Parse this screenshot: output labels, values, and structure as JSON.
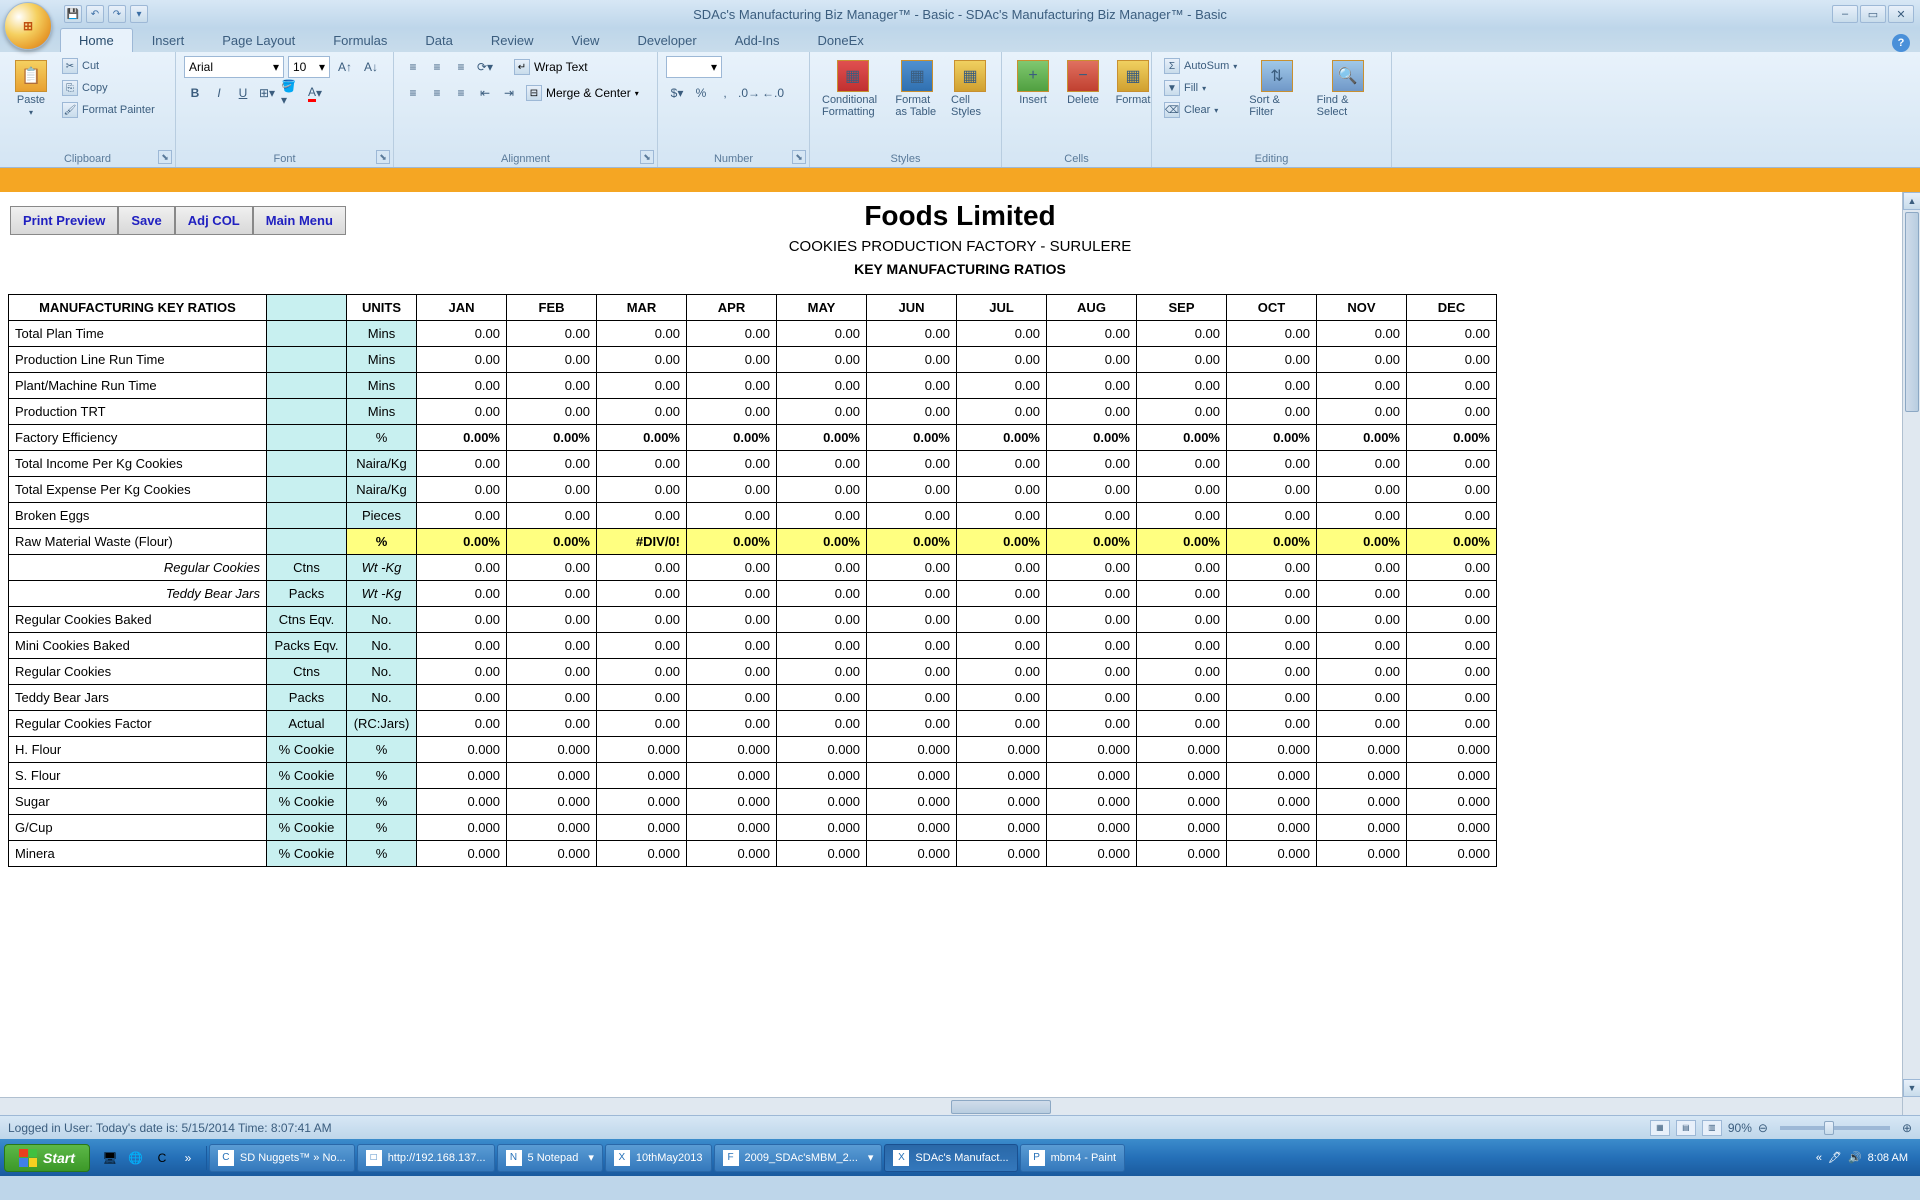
{
  "window": {
    "title": "SDAc's Manufacturing Biz Manager™ - Basic - SDAc's Manufacturing Biz Manager™ - Basic"
  },
  "ribbon": {
    "tabs": [
      "Home",
      "Insert",
      "Page Layout",
      "Formulas",
      "Data",
      "Review",
      "View",
      "Developer",
      "Add-Ins",
      "DoneEx"
    ],
    "active_tab": "Home",
    "clipboard": {
      "label": "Clipboard",
      "paste": "Paste",
      "cut": "Cut",
      "copy": "Copy",
      "format_painter": "Format Painter"
    },
    "font": {
      "label": "Font",
      "name": "Arial",
      "size": "10"
    },
    "alignment": {
      "label": "Alignment",
      "wrap": "Wrap Text",
      "merge": "Merge & Center"
    },
    "number": {
      "label": "Number"
    },
    "styles": {
      "label": "Styles",
      "conditional": "Conditional Formatting",
      "format_table": "Format as Table",
      "cell_styles": "Cell Styles"
    },
    "cells": {
      "label": "Cells",
      "insert": "Insert",
      "delete": "Delete",
      "format": "Format"
    },
    "editing": {
      "label": "Editing",
      "autosum": "AutoSum",
      "fill": "Fill",
      "clear": "Clear",
      "sort_filter": "Sort & Filter",
      "find_select": "Find & Select"
    }
  },
  "actions": {
    "print_preview": "Print Preview",
    "save": "Save",
    "adj_col": "Adj COL",
    "main_menu": "Main Menu"
  },
  "document": {
    "company": "Foods Limited",
    "factory": "COOKIES PRODUCTION FACTORY - SURULERE",
    "title": "KEY MANUFACTURING RATIOS"
  },
  "table": {
    "header_label": "MANUFACTURING KEY RATIOS",
    "units_label": "UNITS",
    "months": [
      "JAN",
      "FEB",
      "MAR",
      "APR",
      "MAY",
      "JUN",
      "JUL",
      "AUG",
      "SEP",
      "OCT",
      "NOV",
      "DEC"
    ],
    "rows": [
      {
        "label": "Total Plan Time",
        "col2": "",
        "units": "Mins",
        "vals": [
          "0.00",
          "0.00",
          "0.00",
          "0.00",
          "0.00",
          "0.00",
          "0.00",
          "0.00",
          "0.00",
          "0.00",
          "0.00",
          "0.00"
        ],
        "style": "plain"
      },
      {
        "label": "Production Line Run Time",
        "col2": "",
        "units": "Mins",
        "vals": [
          "0.00",
          "0.00",
          "0.00",
          "0.00",
          "0.00",
          "0.00",
          "0.00",
          "0.00",
          "0.00",
          "0.00",
          "0.00",
          "0.00"
        ],
        "style": "plain"
      },
      {
        "label": "Plant/Machine Run Time",
        "col2": "",
        "units": "Mins",
        "vals": [
          "0.00",
          "0.00",
          "0.00",
          "0.00",
          "0.00",
          "0.00",
          "0.00",
          "0.00",
          "0.00",
          "0.00",
          "0.00",
          "0.00"
        ],
        "style": "plain"
      },
      {
        "label": "Production TRT",
        "col2": "",
        "units": "Mins",
        "vals": [
          "0.00",
          "0.00",
          "0.00",
          "0.00",
          "0.00",
          "0.00",
          "0.00",
          "0.00",
          "0.00",
          "0.00",
          "0.00",
          "0.00"
        ],
        "style": "plain"
      },
      {
        "label": "Factory Efficiency",
        "col2": "",
        "units": "%",
        "vals": [
          "0.00%",
          "0.00%",
          "0.00%",
          "0.00%",
          "0.00%",
          "0.00%",
          "0.00%",
          "0.00%",
          "0.00%",
          "0.00%",
          "0.00%",
          "0.00%"
        ],
        "style": "bold"
      },
      {
        "label": "Total Income Per Kg Cookies",
        "col2": "",
        "units": "Naira/Kg",
        "vals": [
          "0.00",
          "0.00",
          "0.00",
          "0.00",
          "0.00",
          "0.00",
          "0.00",
          "0.00",
          "0.00",
          "0.00",
          "0.00",
          "0.00"
        ],
        "style": "plain"
      },
      {
        "label": "Total Expense Per Kg Cookies",
        "col2": "",
        "units": "Naira/Kg",
        "vals": [
          "0.00",
          "0.00",
          "0.00",
          "0.00",
          "0.00",
          "0.00",
          "0.00",
          "0.00",
          "0.00",
          "0.00",
          "0.00",
          "0.00"
        ],
        "style": "plain"
      },
      {
        "label": "Broken Eggs",
        "col2": "",
        "units": "Pieces",
        "vals": [
          "0.00",
          "0.00",
          "0.00",
          "0.00",
          "0.00",
          "0.00",
          "0.00",
          "0.00",
          "0.00",
          "0.00",
          "0.00",
          "0.00"
        ],
        "style": "plain"
      },
      {
        "label": "Raw Material Waste (Flour)",
        "col2": "",
        "units": "%",
        "vals": [
          "0.00%",
          "0.00%",
          "#DIV/0!",
          "0.00%",
          "0.00%",
          "0.00%",
          "0.00%",
          "0.00%",
          "0.00%",
          "0.00%",
          "0.00%",
          "0.00%"
        ],
        "style": "yellow"
      },
      {
        "label": "Regular Cookies",
        "col2": "Ctns",
        "units": "Wt -Kg",
        "vals": [
          "0.00",
          "0.00",
          "0.00",
          "0.00",
          "0.00",
          "0.00",
          "0.00",
          "0.00",
          "0.00",
          "0.00",
          "0.00",
          "0.00"
        ],
        "style": "indent"
      },
      {
        "label": "Teddy Bear Jars",
        "col2": "Packs",
        "units": "Wt -Kg",
        "vals": [
          "0.00",
          "0.00",
          "0.00",
          "0.00",
          "0.00",
          "0.00",
          "0.00",
          "0.00",
          "0.00",
          "0.00",
          "0.00",
          "0.00"
        ],
        "style": "indent"
      },
      {
        "label": "Regular Cookies Baked",
        "col2": "Ctns Eqv.",
        "units": "No.",
        "vals": [
          "0.00",
          "0.00",
          "0.00",
          "0.00",
          "0.00",
          "0.00",
          "0.00",
          "0.00",
          "0.00",
          "0.00",
          "0.00",
          "0.00"
        ],
        "style": "plain"
      },
      {
        "label": "Mini Cookies Baked",
        "col2": "Packs Eqv.",
        "units": "No.",
        "vals": [
          "0.00",
          "0.00",
          "0.00",
          "0.00",
          "0.00",
          "0.00",
          "0.00",
          "0.00",
          "0.00",
          "0.00",
          "0.00",
          "0.00"
        ],
        "style": "plain"
      },
      {
        "label": "Regular Cookies",
        "col2": "Ctns",
        "units": "No.",
        "vals": [
          "0.00",
          "0.00",
          "0.00",
          "0.00",
          "0.00",
          "0.00",
          "0.00",
          "0.00",
          "0.00",
          "0.00",
          "0.00",
          "0.00"
        ],
        "style": "plain"
      },
      {
        "label": "Teddy Bear Jars",
        "col2": "Packs",
        "units": "No.",
        "vals": [
          "0.00",
          "0.00",
          "0.00",
          "0.00",
          "0.00",
          "0.00",
          "0.00",
          "0.00",
          "0.00",
          "0.00",
          "0.00",
          "0.00"
        ],
        "style": "plain"
      },
      {
        "label": "Regular Cookies Factor",
        "col2": "Actual",
        "units": "(RC:Jars)",
        "vals": [
          "0.00",
          "0.00",
          "0.00",
          "0.00",
          "0.00",
          "0.00",
          "0.00",
          "0.00",
          "0.00",
          "0.00",
          "0.00",
          "0.00"
        ],
        "style": "plain"
      },
      {
        "label": "H. Flour",
        "col2": "% Cookie",
        "units": "%",
        "vals": [
          "0.000",
          "0.000",
          "0.000",
          "0.000",
          "0.000",
          "0.000",
          "0.000",
          "0.000",
          "0.000",
          "0.000",
          "0.000",
          "0.000"
        ],
        "style": "plain"
      },
      {
        "label": "S. Flour",
        "col2": "% Cookie",
        "units": "%",
        "vals": [
          "0.000",
          "0.000",
          "0.000",
          "0.000",
          "0.000",
          "0.000",
          "0.000",
          "0.000",
          "0.000",
          "0.000",
          "0.000",
          "0.000"
        ],
        "style": "plain"
      },
      {
        "label": "Sugar",
        "col2": "% Cookie",
        "units": "%",
        "vals": [
          "0.000",
          "0.000",
          "0.000",
          "0.000",
          "0.000",
          "0.000",
          "0.000",
          "0.000",
          "0.000",
          "0.000",
          "0.000",
          "0.000"
        ],
        "style": "plain"
      },
      {
        "label": "G/Cup",
        "col2": "% Cookie",
        "units": "%",
        "vals": [
          "0.000",
          "0.000",
          "0.000",
          "0.000",
          "0.000",
          "0.000",
          "0.000",
          "0.000",
          "0.000",
          "0.000",
          "0.000",
          "0.000"
        ],
        "style": "plain"
      },
      {
        "label": "Minera",
        "col2": "% Cookie",
        "units": "%",
        "vals": [
          "0.000",
          "0.000",
          "0.000",
          "0.000",
          "0.000",
          "0.000",
          "0.000",
          "0.000",
          "0.000",
          "0.000",
          "0.000",
          "0.000"
        ],
        "style": "plain"
      }
    ]
  },
  "statusbar": {
    "text": "Logged in User:  Today's date is: 5/15/2014 Time: 8:07:41 AM",
    "zoom": "90%"
  },
  "taskbar": {
    "start": "Start",
    "tasks": [
      {
        "label": "SD Nuggets™ » No...",
        "icon": "C"
      },
      {
        "label": "http://192.168.137...",
        "icon": "□"
      },
      {
        "label": "5 Notepad",
        "icon": "N",
        "dd": true
      },
      {
        "label": "10thMay2013",
        "icon": "X"
      },
      {
        "label": "2009_SDAc'sMBM_2...",
        "icon": "F",
        "dd": true
      },
      {
        "label": "SDAc's Manufact...",
        "icon": "X",
        "active": true
      },
      {
        "label": "mbm4 - Paint",
        "icon": "P"
      }
    ],
    "clock": "8:08 AM"
  }
}
